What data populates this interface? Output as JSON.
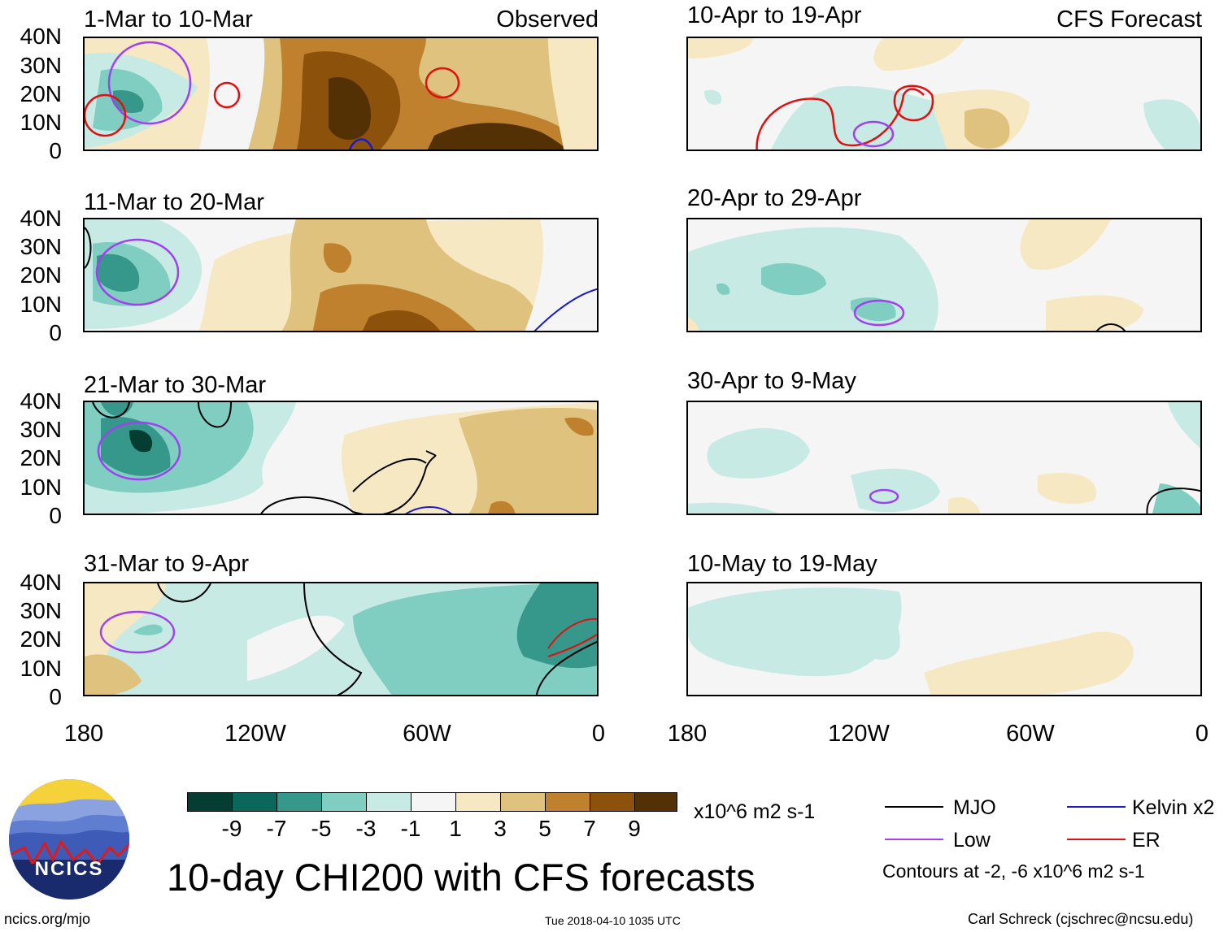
{
  "headers": {
    "left": "Observed",
    "right": "CFS Forecast"
  },
  "panels_left": [
    "1-Mar to 10-Mar",
    "11-Mar to 20-Mar",
    "21-Mar to 30-Mar",
    "31-Mar to 9-Apr"
  ],
  "panels_right": [
    "10-Apr to 19-Apr",
    "20-Apr to 29-Apr",
    "30-Apr to 9-May",
    "10-May to 19-May"
  ],
  "lat_labels": [
    "40N",
    "30N",
    "20N",
    "10N",
    "0"
  ],
  "lon_labels": [
    "180",
    "120W",
    "60W",
    "0"
  ],
  "colorbar": {
    "labels": [
      "-9",
      "-7",
      "-5",
      "-3",
      "-1",
      "1",
      "3",
      "5",
      "7",
      "9"
    ],
    "colors": [
      "#053d33",
      "#0b675c",
      "#36978b",
      "#80cdc1",
      "#c7eae5",
      "#f5f5f5",
      "#f6e8c3",
      "#dfc27d",
      "#bf812d",
      "#8c510a",
      "#543005"
    ],
    "units": "x10^6 m2 s-1"
  },
  "legend": {
    "items": [
      {
        "label": "MJO",
        "color": "#000000"
      },
      {
        "label": "Kelvin x2",
        "color": "#1a1acc"
      },
      {
        "label": "Low",
        "color": "#a040f0"
      },
      {
        "label": "ER",
        "color": "#e01010"
      }
    ],
    "contours_note": "Contours at -2, -6 x10^6 m2 s-1"
  },
  "title": "10-day CHI200 with CFS forecasts",
  "logo_text": "NCICS",
  "footer": {
    "left": "ncics.org/mjo",
    "center": "Tue 2018-04-10 1035 UTC",
    "right": "Carl Schreck (cjschrec@ncsu.edu)"
  }
}
